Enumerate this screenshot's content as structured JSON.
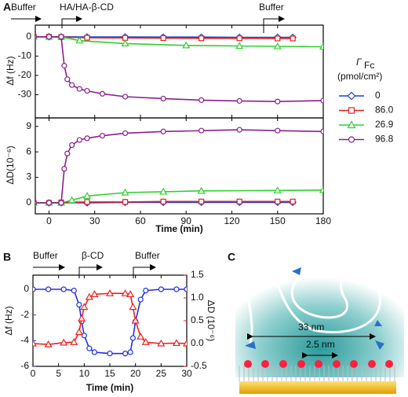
{
  "chart_data": [
    {
      "type": "line",
      "panel_label": "A",
      "ylabel": "Δf (Hz)",
      "xlim": [
        -9,
        180
      ],
      "ylim": [
        -42,
        6
      ],
      "yticks": [
        0,
        -10,
        -20,
        -30
      ],
      "xticks": [
        0,
        30,
        60,
        90,
        120,
        150,
        180
      ],
      "annotations": [
        "Buffer",
        "HA/HA-β-CD",
        "Buffer"
      ],
      "series": [
        {
          "name": "0",
          "color": "#2040d0",
          "marker": "diamond",
          "x": [
            -10,
            0,
            8,
            25,
            50,
            75,
            100,
            125,
            150,
            160
          ],
          "values": [
            0,
            0,
            0,
            -0.1,
            -0.1,
            -0.2,
            -0.2,
            -0.3,
            -0.3,
            -0.3
          ]
        },
        {
          "name": "86.0",
          "color": "#e02020",
          "marker": "square",
          "x": [
            -10,
            0,
            8,
            25,
            50,
            75,
            100,
            125,
            150,
            160
          ],
          "values": [
            0,
            0,
            -0.2,
            -0.5,
            -0.6,
            -0.7,
            -0.8,
            -0.8,
            -0.9,
            -0.9
          ]
        },
        {
          "name": "26.9",
          "color": "#30d030",
          "marker": "triangle",
          "x": [
            -10,
            0,
            8,
            20,
            50,
            90,
            125,
            150,
            180
          ],
          "values": [
            0,
            0,
            0,
            -2,
            -3.5,
            -4.5,
            -4.8,
            -5,
            -5.2
          ]
        },
        {
          "name": "96.8",
          "color": "#8a2090",
          "marker": "circle",
          "x": [
            -10,
            0,
            8,
            10,
            12,
            15,
            20,
            25,
            35,
            50,
            75,
            100,
            125,
            150,
            180
          ],
          "values": [
            0,
            0,
            0,
            -15,
            -22,
            -25,
            -27,
            -28,
            -29.5,
            -31,
            -32,
            -32.8,
            -33.2,
            -33.5,
            -33
          ]
        }
      ],
      "legend_title": "Γ",
      "legend_title_sub": "Fc",
      "legend_unit": "(pmol/cm²)"
    },
    {
      "type": "line",
      "ylabel": "ΔD(10⁻⁶)",
      "xlabel": "Time (min)",
      "xlim": [
        -9,
        180
      ],
      "ylim": [
        -1.3,
        10
      ],
      "yticks": [
        0,
        3,
        6,
        9
      ],
      "xticks": [
        0,
        30,
        60,
        90,
        120,
        150,
        180
      ],
      "series": [
        {
          "name": "0",
          "color": "#2040d0",
          "marker": "diamond",
          "x": [
            -10,
            0,
            8,
            25,
            50,
            75,
            100,
            125,
            150,
            160
          ],
          "values": [
            0,
            0,
            0,
            0,
            0.05,
            0.05,
            0.05,
            0.05,
            0.05,
            0.05
          ]
        },
        {
          "name": "86.0",
          "color": "#e02020",
          "marker": "square",
          "x": [
            -10,
            0,
            8,
            25,
            50,
            75,
            100,
            125,
            150,
            160
          ],
          "values": [
            0,
            0,
            0.05,
            0.1,
            0.1,
            0.15,
            0.15,
            0.15,
            0.15,
            0.15
          ]
        },
        {
          "name": "26.9",
          "color": "#30d030",
          "marker": "triangle",
          "x": [
            -10,
            0,
            8,
            15,
            25,
            50,
            75,
            100,
            150,
            180
          ],
          "values": [
            0,
            0,
            0,
            0.3,
            0.8,
            1.2,
            1.3,
            1.4,
            1.45,
            1.5
          ]
        },
        {
          "name": "96.8",
          "color": "#8a2090",
          "marker": "circle",
          "x": [
            -10,
            0,
            8,
            10,
            12,
            15,
            20,
            25,
            35,
            50,
            75,
            100,
            125,
            150,
            180
          ],
          "values": [
            0,
            0,
            0,
            4,
            5.8,
            6.8,
            7.4,
            7.6,
            7.9,
            8.2,
            8.4,
            8.5,
            8.6,
            8.5,
            8.4
          ]
        }
      ]
    },
    {
      "type": "line",
      "panel_label": "B",
      "ylabel": "Δf (Hz)",
      "y2label": "ΔD (10⁻⁶)",
      "xlabel": "Time (min)",
      "annotations": [
        "Buffer",
        "β-CD",
        "Buffer"
      ],
      "xlim": [
        0,
        30
      ],
      "ylim": [
        -6,
        1.1
      ],
      "y2lim": [
        -0.5,
        1.5
      ],
      "xticks": [
        0,
        5,
        10,
        15,
        20,
        25,
        30
      ],
      "yticks": [
        0,
        -2,
        -4,
        -6
      ],
      "y2ticks": [
        {
          "value": -0.5,
          "label": "-0.5"
        },
        {
          "value": 0,
          "label": "0.0"
        },
        {
          "value": 0.5,
          "label": "0.5"
        },
        {
          "value": 1,
          "label": "1.0"
        },
        {
          "value": 1.5,
          "label": "1.5"
        }
      ],
      "series": [
        {
          "name": "Δf",
          "color": "#2030e0",
          "marker": "circle",
          "x": [
            0,
            3,
            6,
            8,
            9,
            9.5,
            10,
            11,
            12,
            15,
            18,
            19,
            19.5,
            20,
            21,
            22,
            25,
            28,
            30
          ],
          "values": [
            0,
            0,
            0,
            -0.1,
            -1.2,
            -2.5,
            -3.6,
            -4.6,
            -4.9,
            -5,
            -5,
            -4.9,
            -3.8,
            -2.5,
            -0.8,
            -0.1,
            0,
            0,
            0
          ]
        },
        {
          "name": "ΔD",
          "color": "#f02020",
          "marker": "triangle",
          "axis": "y2",
          "x": [
            0,
            3,
            6,
            8,
            9,
            9.5,
            10,
            11,
            12,
            15,
            18,
            19,
            19.5,
            20,
            21,
            22,
            25,
            28,
            30
          ],
          "values": [
            0,
            -0.02,
            0.02,
            0.03,
            0.25,
            0.55,
            0.8,
            1.02,
            1.08,
            1.1,
            1.1,
            1.08,
            0.8,
            0.5,
            0.15,
            0.03,
            0,
            0.01,
            0
          ]
        }
      ]
    }
  ],
  "diagram": {
    "panel_label": "C",
    "labels": [
      "33 nm",
      "2.5 nm"
    ]
  }
}
